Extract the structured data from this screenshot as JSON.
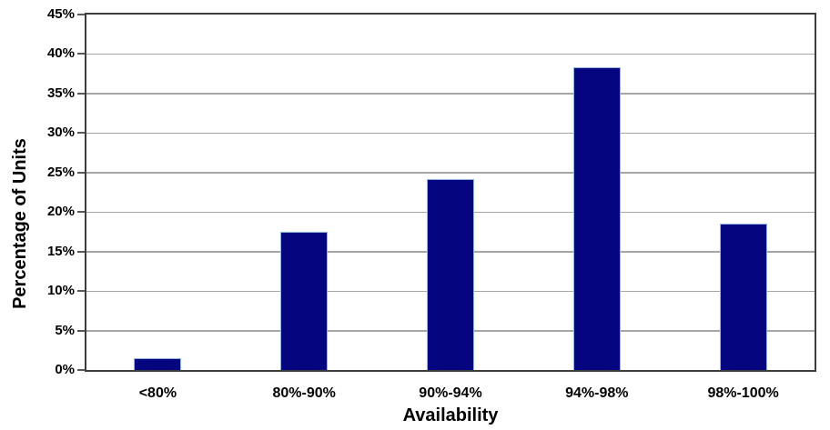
{
  "chart_data": {
    "type": "bar",
    "title": "",
    "categories": [
      "<80%",
      "80%-90%",
      "90%-94%",
      "94%-98%",
      "98%-100%"
    ],
    "values": [
      1.5,
      17.5,
      24.2,
      38.3,
      18.5
    ],
    "xlabel": "Availability",
    "ylabel": "Percentage of Units",
    "ylim": [
      0,
      45
    ],
    "ytick_step": 5,
    "ytick_suffix": "%",
    "grid": true,
    "legend_position": "none",
    "colors": {
      "bar_fill": "#05057f",
      "bar_border": "#8eb4e3",
      "gridline": "#a6a6a6",
      "plot_border": "#3c3c3c",
      "tick_mark": "#595959",
      "text": "#000000",
      "background": "#ffffff"
    }
  }
}
